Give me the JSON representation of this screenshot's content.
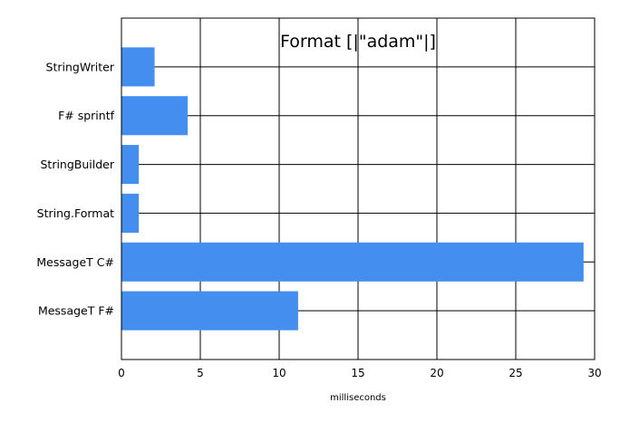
{
  "chart_data": {
    "type": "bar",
    "orientation": "horizontal",
    "title": "Format [|\"adam\"|]",
    "xlabel": "milliseconds",
    "ylabel": "",
    "categories": [
      "StringWriter",
      "F# sprintf",
      "StringBuilder",
      "String.Format",
      "MessageT C#",
      "MessageT F#"
    ],
    "values": [
      2.1,
      4.2,
      1.1,
      1.1,
      29.3,
      11.2
    ],
    "xlim": [
      0,
      30
    ],
    "xticks": [
      0,
      5,
      10,
      15,
      20,
      25,
      30
    ],
    "grid": true,
    "legend": "none",
    "bar_color": "#438EEE"
  }
}
